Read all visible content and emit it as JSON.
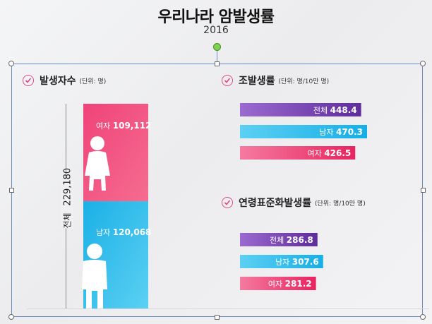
{
  "title": "우리나라 암발생률",
  "year": "2016",
  "sections": {
    "incidence": {
      "heading": "발생자수",
      "unit": "(단위: 명)"
    },
    "crude": {
      "heading": "조발생률",
      "unit": "(단위: 명/10만 명)"
    },
    "age_std": {
      "heading": "연령표준화발생률",
      "unit": "(단위: 명/10만 명)"
    }
  },
  "total_label": "전체",
  "total_value": "229,180",
  "colors": {
    "female": "#ec2f6b",
    "male": "#2bb8e8",
    "total": "#6b3aa8",
    "check": "#d94d86"
  },
  "chart_data": [
    {
      "type": "bar",
      "title": "발생자수",
      "unit": "(단위: 명)",
      "total": {
        "label": "전체",
        "value": 229180
      },
      "series": [
        {
          "name": "여자",
          "value": 109112,
          "display": "109,112"
        },
        {
          "name": "남자",
          "value": 120068,
          "display": "120,068"
        }
      ]
    },
    {
      "type": "bar",
      "title": "조발생률",
      "unit": "(단위: 명/10만 명)",
      "categories": [
        "전체",
        "남자",
        "여자"
      ],
      "values": [
        448.4,
        470.3,
        426.5
      ],
      "display": [
        "448.4",
        "470.3",
        "426.5"
      ]
    },
    {
      "type": "bar",
      "title": "연령표준화발생률",
      "unit": "(단위: 명/10만 명)",
      "categories": [
        "전체",
        "남자",
        "여자"
      ],
      "values": [
        286.8,
        307.6,
        281.2
      ],
      "display": [
        "286.8",
        "307.6",
        "281.2"
      ]
    }
  ]
}
